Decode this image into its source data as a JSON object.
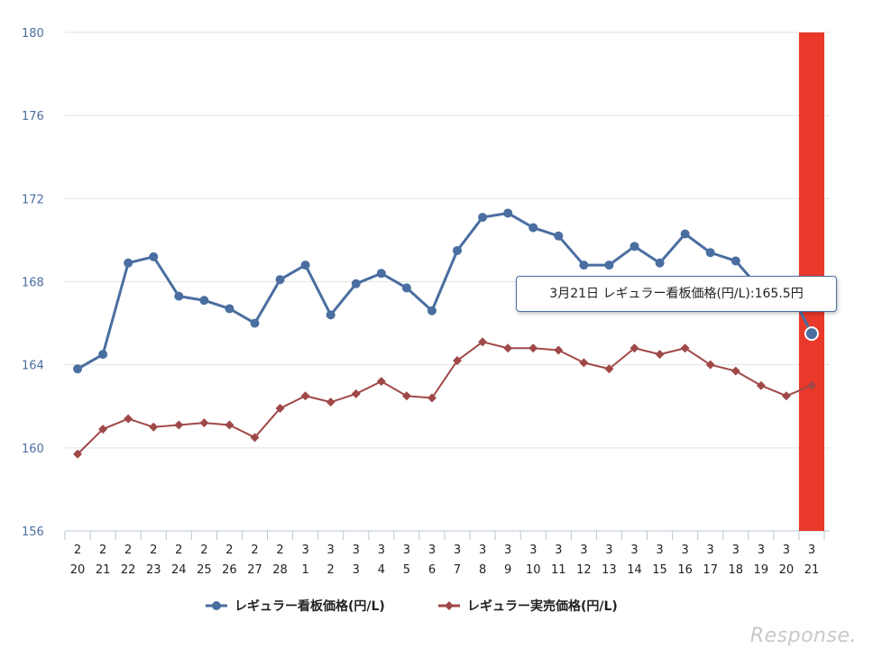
{
  "chart_data": {
    "type": "line",
    "categories": [
      [
        "2",
        "20"
      ],
      [
        "2",
        "21"
      ],
      [
        "2",
        "22"
      ],
      [
        "2",
        "23"
      ],
      [
        "2",
        "24"
      ],
      [
        "2",
        "25"
      ],
      [
        "2",
        "26"
      ],
      [
        "2",
        "27"
      ],
      [
        "2",
        "28"
      ],
      [
        "3",
        "1"
      ],
      [
        "3",
        "2"
      ],
      [
        "3",
        "3"
      ],
      [
        "3",
        "4"
      ],
      [
        "3",
        "5"
      ],
      [
        "3",
        "6"
      ],
      [
        "3",
        "7"
      ],
      [
        "3",
        "8"
      ],
      [
        "3",
        "9"
      ],
      [
        "3",
        "10"
      ],
      [
        "3",
        "11"
      ],
      [
        "3",
        "12"
      ],
      [
        "3",
        "13"
      ],
      [
        "3",
        "14"
      ],
      [
        "3",
        "15"
      ],
      [
        "3",
        "16"
      ],
      [
        "3",
        "17"
      ],
      [
        "3",
        "18"
      ],
      [
        "3",
        "19"
      ],
      [
        "3",
        "20"
      ],
      [
        "3",
        "21"
      ]
    ],
    "ylim": [
      156,
      180
    ],
    "yticks": [
      156,
      160,
      164,
      168,
      172,
      176,
      180
    ],
    "grid": true,
    "legend_position": "bottom",
    "highlight_index": 29,
    "series": [
      {
        "name": "レギュラー看板価格(円/L)",
        "color": "#4a6ea0",
        "marker": "circle",
        "values": [
          163.8,
          164.5,
          168.9,
          169.2,
          167.3,
          167.1,
          166.7,
          166.0,
          168.1,
          168.8,
          166.4,
          167.9,
          168.4,
          167.7,
          166.6,
          169.5,
          171.1,
          171.3,
          170.6,
          170.2,
          168.8,
          168.8,
          169.7,
          168.9,
          170.3,
          169.4,
          169.0,
          167.6,
          167.9,
          165.5
        ]
      },
      {
        "name": "レギュラー実売価格(円/L)",
        "color": "#a04848",
        "marker": "diamond",
        "values": [
          159.7,
          160.9,
          161.4,
          161.0,
          161.1,
          161.2,
          161.1,
          160.5,
          161.9,
          162.5,
          162.2,
          162.6,
          163.2,
          162.5,
          162.4,
          164.2,
          165.1,
          164.8,
          164.8,
          164.7,
          164.1,
          163.8,
          164.8,
          164.5,
          164.8,
          164.0,
          163.7,
          163.0,
          162.5,
          163.0
        ]
      }
    ],
    "highlight_color": "#e8392a",
    "tooltip": "3月21日 レギュラー看板価格(円/L):165.5円"
  },
  "watermark": "Response."
}
